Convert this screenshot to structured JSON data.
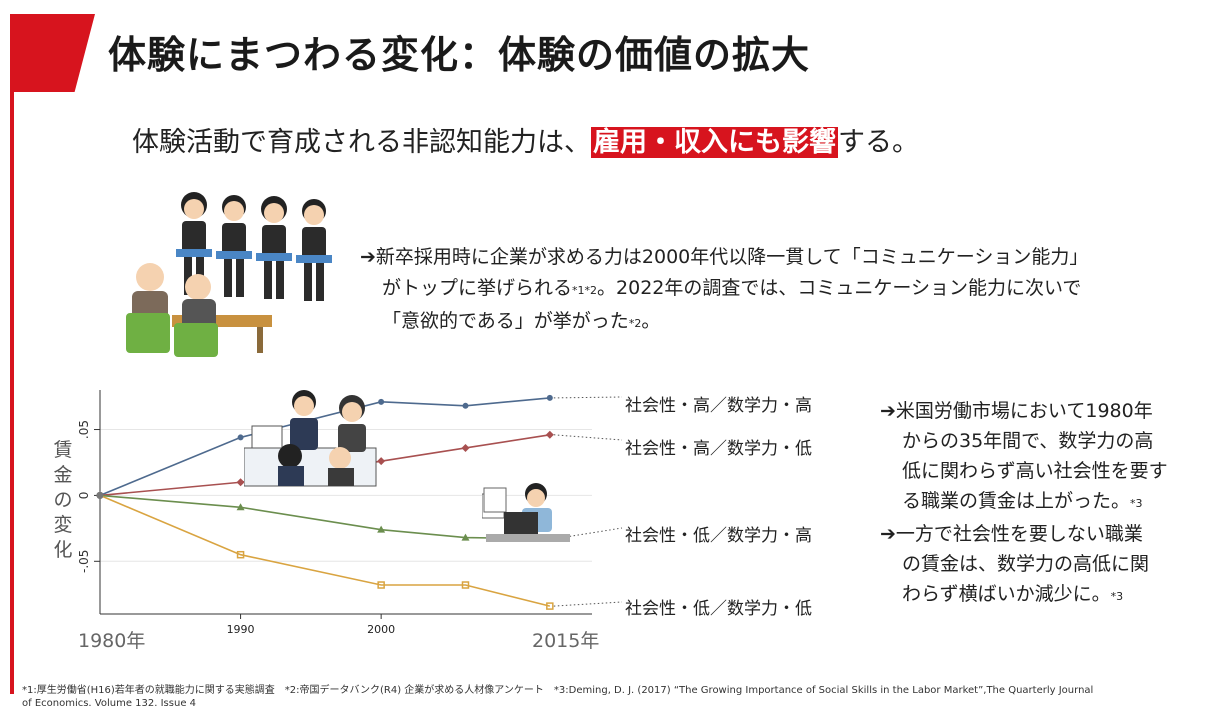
{
  "header": {
    "title": "体験にまつわる変化：体験の価値の拡大",
    "subtitle_before": "体験活動で育成される非認知能力は、",
    "subtitle_highlight": "雇用・収入にも影響",
    "subtitle_after": "する。"
  },
  "note_hiring": {
    "line1": "➔新卒採用時に企業が求める力は2000年代以降一貫して「コミュニケーション能力」",
    "line2a": "がトップに挙げられる",
    "line2_sup": "*1*2",
    "line2b": "。2022年の調査では、コミュニケーション能力に次いで",
    "line3a": "「意欲的である」が挙がった",
    "line3_sup": "*2",
    "line3b": "。"
  },
  "note_wages": {
    "p1_head": "➔米国労働市場において1980年",
    "p1_l2": "からの35年間で、数学力の高",
    "p1_l3": "低に関わらず高い社会性を要す",
    "p1_l4": "る職業の賃金は上がった。",
    "p1_sup": "*3",
    "p2_head": "➔一方で社会性を要しない職業",
    "p2_l2": "の賃金は、数学力の高低に関",
    "p2_l3": "わらず横ばいか減少に。",
    "p2_sup": "*3"
  },
  "footer": {
    "line1": "*1:厚生労働省(H16)若年者の就職能力に関する実態調査　*2:帝国データバンク(R4) 企業が求める人材像アンケート　*3:Deming, D. J. (2017) “The Growing Importance of Social Skills in the Labor Market”,The Quarterly Journal",
    "line2": "of Economics. Volume 132. Issue 4"
  },
  "chart_data": {
    "type": "line",
    "ylabel": "賃金の変化",
    "x_start_label": "1980年",
    "x_end_label": "2015年",
    "x_ticks": [
      "1990",
      "2000"
    ],
    "y_ticks": [
      ".05",
      "0",
      "-.05"
    ],
    "xlim": [
      1980,
      2015
    ],
    "ylim": [
      -0.09,
      0.08
    ],
    "grid": true,
    "series": [
      {
        "name": "社会性・高／数学力・高",
        "color": "#4e6a8e",
        "marker": "circle",
        "x": [
          1980,
          1990,
          2000,
          2006,
          2012
        ],
        "y": [
          0,
          0.044,
          0.071,
          0.068,
          0.074
        ]
      },
      {
        "name": "社会性・高／数学力・低",
        "color": "#a85050",
        "marker": "diamond",
        "x": [
          1980,
          1990,
          2000,
          2006,
          2012
        ],
        "y": [
          0,
          0.01,
          0.026,
          0.036,
          0.046
        ]
      },
      {
        "name": "社会性・低／数学力・高",
        "color": "#6b8e4e",
        "marker": "triangle",
        "x": [
          1980,
          1990,
          2000,
          2006,
          2012
        ],
        "y": [
          0,
          -0.009,
          -0.026,
          -0.032,
          -0.033
        ]
      },
      {
        "name": "社会性・低／数学力・低",
        "color": "#d9a441",
        "marker": "square",
        "x": [
          1980,
          1990,
          2000,
          2006,
          2012
        ],
        "y": [
          0,
          -0.045,
          -0.068,
          -0.068,
          -0.084
        ]
      }
    ]
  }
}
